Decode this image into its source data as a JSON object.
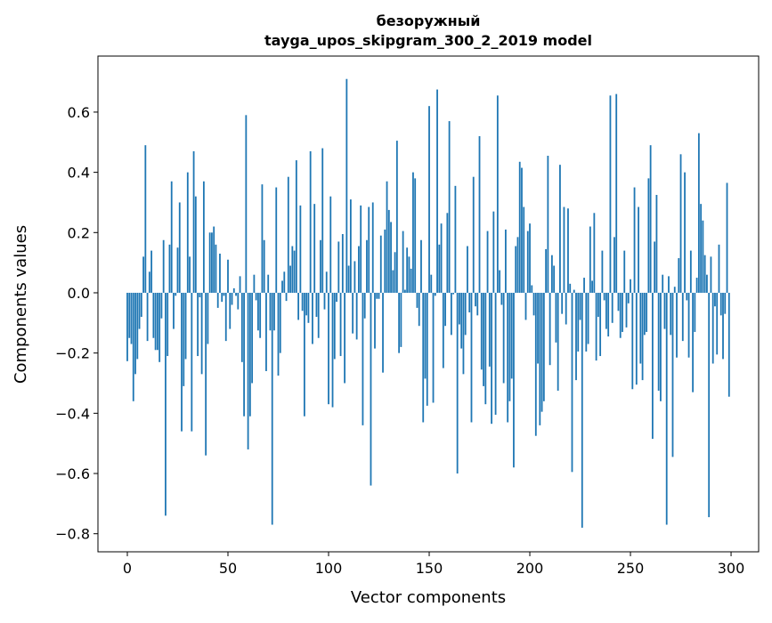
{
  "chart_data": {
    "type": "bar",
    "title": "безоружный",
    "subtitle": "tayga_upos_skipgram_300_2_2019 model",
    "xlabel": "Vector components",
    "ylabel": "Components values",
    "xlim": [
      -14.6,
      313.7
    ],
    "ylim": [
      -0.86,
      0.786
    ],
    "grid": false,
    "bar_color": "#1f77b4",
    "x_ticks": [
      0,
      50,
      100,
      150,
      200,
      250,
      300
    ],
    "x_tick_labels": [
      "0",
      "50",
      "100",
      "150",
      "200",
      "250",
      "300"
    ],
    "y_ticks": [
      -0.8,
      -0.6,
      -0.4,
      -0.2,
      0.0,
      0.2,
      0.4,
      0.6
    ],
    "y_tick_labels": [
      "−0.8",
      "−0.6",
      "−0.4",
      "−0.2",
      "0.0",
      "0.2",
      "0.4",
      "0.6"
    ],
    "values": [
      -0.227,
      -0.15,
      -0.17,
      -0.36,
      -0.27,
      -0.22,
      -0.12,
      -0.08,
      0.12,
      0.49,
      -0.16,
      0.07,
      0.14,
      -0.15,
      -0.19,
      -0.19,
      -0.23,
      -0.085,
      0.175,
      -0.74,
      -0.21,
      0.16,
      0.37,
      -0.12,
      -0.01,
      0.15,
      0.3,
      -0.46,
      -0.31,
      -0.22,
      0.4,
      0.12,
      -0.46,
      0.47,
      0.32,
      -0.21,
      -0.015,
      -0.27,
      0.37,
      -0.54,
      -0.17,
      0.2,
      0.2,
      0.22,
      0.16,
      -0.05,
      0.13,
      -0.03,
      -0.01,
      -0.16,
      0.11,
      -0.12,
      -0.04,
      0.015,
      -0.01,
      -0.055,
      0.055,
      -0.23,
      -0.41,
      0.59,
      -0.52,
      -0.41,
      -0.3,
      0.06,
      -0.025,
      -0.125,
      -0.15,
      0.36,
      0.175,
      -0.26,
      0.06,
      -0.125,
      -0.77,
      -0.125,
      0.35,
      -0.275,
      -0.2,
      0.04,
      0.07,
      -0.027,
      0.385,
      0.09,
      0.155,
      0.14,
      0.44,
      -0.09,
      0.29,
      -0.06,
      -0.41,
      -0.075,
      -0.1,
      0.47,
      -0.17,
      0.295,
      -0.08,
      -0.15,
      0.175,
      0.48,
      -0.055,
      0.07,
      -0.37,
      0.32,
      -0.38,
      -0.22,
      -0.03,
      0.17,
      -0.21,
      0.195,
      -0.3,
      0.71,
      0.09,
      0.31,
      -0.135,
      0.105,
      -0.155,
      0.155,
      0.29,
      -0.44,
      -0.085,
      0.175,
      0.285,
      -0.64,
      0.3,
      -0.185,
      -0.02,
      -0.02,
      0.19,
      -0.265,
      0.21,
      0.37,
      0.275,
      0.235,
      0.075,
      0.135,
      0.505,
      -0.2,
      -0.18,
      0.205,
      0.01,
      0.15,
      0.12,
      0.08,
      0.4,
      0.38,
      -0.05,
      -0.11,
      0.175,
      -0.43,
      -0.285,
      -0.375,
      0.62,
      0.06,
      -0.365,
      -0.01,
      0.675,
      0.16,
      0.23,
      -0.25,
      -0.11,
      0.265,
      0.57,
      -0.14,
      -0.005,
      0.355,
      -0.6,
      -0.105,
      -0.185,
      -0.27,
      -0.14,
      0.155,
      -0.065,
      -0.43,
      0.385,
      -0.045,
      -0.075,
      0.52,
      -0.255,
      -0.31,
      -0.37,
      0.205,
      -0.245,
      -0.435,
      0.27,
      -0.405,
      0.655,
      0.075,
      -0.04,
      -0.3,
      0.21,
      -0.43,
      -0.36,
      -0.285,
      -0.58,
      0.155,
      0.185,
      0.435,
      0.415,
      0.285,
      -0.09,
      0.205,
      0.23,
      0.025,
      -0.075,
      -0.475,
      -0.235,
      -0.44,
      -0.395,
      -0.36,
      0.145,
      0.455,
      -0.24,
      0.125,
      0.09,
      -0.165,
      -0.325,
      0.425,
      -0.07,
      0.285,
      -0.105,
      0.28,
      0.03,
      -0.595,
      0.01,
      -0.29,
      -0.195,
      -0.09,
      -0.78,
      0.05,
      -0.195,
      -0.17,
      0.22,
      0.04,
      0.265,
      -0.225,
      -0.08,
      -0.21,
      0.14,
      -0.025,
      -0.12,
      -0.145,
      0.655,
      -0.1,
      0.185,
      0.66,
      -0.06,
      -0.15,
      -0.13,
      0.14,
      -0.115,
      -0.035,
      0.045,
      -0.32,
      0.35,
      -0.305,
      0.285,
      -0.235,
      -0.29,
      -0.14,
      -0.13,
      0.38,
      0.49,
      -0.485,
      0.17,
      0.325,
      -0.325,
      -0.36,
      0.06,
      -0.12,
      -0.77,
      0.055,
      -0.14,
      -0.545,
      0.02,
      -0.215,
      0.115,
      0.46,
      -0.16,
      0.4,
      -0.025,
      -0.215,
      0.14,
      -0.33,
      -0.13,
      0.05,
      0.53,
      0.295,
      0.24,
      0.125,
      0.06,
      -0.745,
      0.12,
      -0.235,
      -0.045,
      -0.205,
      0.16,
      -0.075,
      -0.22,
      -0.07,
      0.365,
      -0.345
    ]
  }
}
